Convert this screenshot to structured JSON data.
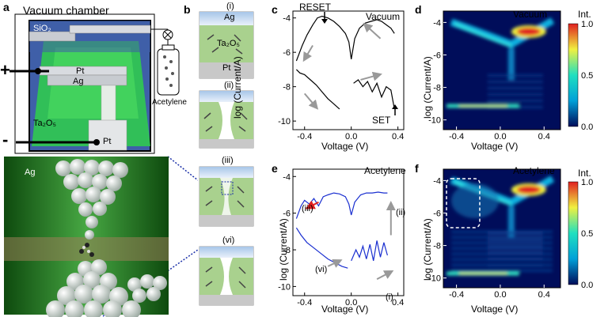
{
  "panel_labels": {
    "a": "a",
    "b": "b",
    "c": "c",
    "d": "d",
    "e": "e",
    "f": "f"
  },
  "panel_a": {
    "title": "Vacuum chamber",
    "sio2": "SiO₂",
    "pt_top": "Pt",
    "ag": "Ag",
    "ta2o5": "Ta₂O₅",
    "pt_bottom": "Pt",
    "plus": "+",
    "minus": "-",
    "acetylene": "Acetylene",
    "nano_ag": "Ag"
  },
  "panel_b": {
    "stages": [
      "(i)",
      "(ii)",
      "(iii)",
      "(vi)"
    ],
    "ag": "Ag",
    "ta2o5": "Ta₂O₅",
    "pt": "Pt"
  },
  "chart_data": [
    {
      "panel": "c",
      "type": "line",
      "title": "Vacuum",
      "xlabel": "Voltage (V)",
      "ylabel": "log (Current/A)",
      "xlim": [
        -0.5,
        0.45
      ],
      "ylim": [
        -10.5,
        -3.6
      ],
      "xticks": [
        "-0.4",
        "0.0",
        "0.4"
      ],
      "yticks": [
        "-4",
        "-6",
        "-8",
        "-10"
      ],
      "annotations": [
        "RESET",
        "SET"
      ],
      "series": [
        {
          "x": [
            -0.47,
            -0.42,
            -0.38,
            -0.33,
            -0.29,
            -0.25,
            -0.2,
            -0.15,
            -0.1,
            -0.05,
            -0.02,
            0.0,
            0.03,
            0.07,
            0.12,
            0.17,
            0.22,
            0.26,
            0.3,
            0.34,
            0.36,
            0.37
          ],
          "y": [
            -6.5,
            -5.6,
            -5.0,
            -4.4,
            -4.0,
            -3.9,
            -4.0,
            -4.2,
            -4.5,
            -4.9,
            -5.4,
            -6.4,
            -5.2,
            -4.6,
            -4.3,
            -4.2,
            -4.1,
            -4.2,
            -4.4,
            -4.6,
            -4.8,
            -4.9
          ]
        },
        {
          "x": [
            0.37,
            0.34,
            0.3,
            0.26,
            0.22,
            0.18,
            0.14,
            0.1,
            0.06,
            0.02
          ],
          "y": [
            -9.3,
            -8.2,
            -8.0,
            -8.6,
            -7.8,
            -8.3,
            -7.7,
            -8.0,
            -7.6,
            -7.8
          ]
        },
        {
          "x": [
            -0.47,
            -0.44,
            -0.4,
            -0.35,
            -0.3,
            -0.25,
            -0.2,
            -0.15,
            -0.1
          ],
          "y": [
            -7.0,
            -7.2,
            -7.3,
            -7.6,
            -7.9,
            -8.3,
            -8.7,
            -9.0,
            -9.3
          ]
        }
      ]
    },
    {
      "panel": "d",
      "type": "heatmap",
      "title": "Vacuum",
      "xlabel": "Voltage (V)",
      "ylabel": "log (Current/A)",
      "xticks": [
        "-0.4",
        "0.0",
        "0.4"
      ],
      "yticks": [
        "-4",
        "-6",
        "-8",
        "-10"
      ],
      "colorbar_label": "Int.",
      "colorbar_ticks": [
        "1.0",
        "0.5",
        "0.0"
      ],
      "colors": [
        "#000d5a",
        "#00a0d8",
        "#20e0c0",
        "#f0f040",
        "#e02020"
      ]
    },
    {
      "panel": "e",
      "type": "line",
      "title": "Acetylene",
      "xlabel": "Voltage (V)",
      "ylabel": "log (Current/A)",
      "xlim": [
        -0.5,
        0.45
      ],
      "ylim": [
        -10.5,
        -3.6
      ],
      "xticks": [
        "-0.4",
        "0.0",
        "0.4"
      ],
      "yticks": [
        "-4",
        "-6",
        "-8",
        "-10"
      ],
      "annotations": [
        "(i)",
        "(ii)",
        "(iii)",
        "(vi)"
      ],
      "color": "#1a2fd0",
      "series": [
        {
          "x": [
            -0.47,
            -0.43,
            -0.4,
            -0.36,
            -0.32,
            -0.28,
            -0.24,
            -0.2,
            -0.15,
            -0.1,
            -0.05,
            -0.02,
            0.0,
            0.03,
            0.08,
            0.13,
            0.18,
            0.23,
            0.28,
            0.31
          ],
          "y": [
            -6.3,
            -5.6,
            -5.3,
            -5.5,
            -5.2,
            -5.6,
            -5.1,
            -5.0,
            -4.9,
            -4.95,
            -5.1,
            -5.5,
            -6.1,
            -5.4,
            -5.0,
            -4.9,
            -4.9,
            -4.85,
            -4.9,
            -4.9
          ]
        },
        {
          "x": [
            0.31,
            0.28,
            0.25,
            0.22,
            0.19,
            0.16,
            0.13,
            0.1,
            0.07,
            0.04,
            0.0
          ],
          "y": [
            -8.3,
            -7.6,
            -8.4,
            -7.5,
            -8.6,
            -7.7,
            -8.5,
            -7.8,
            -8.4,
            -8.0,
            -8.6
          ]
        },
        {
          "x": [
            -0.47,
            -0.43,
            -0.38,
            -0.32,
            -0.26,
            -0.2,
            -0.14,
            -0.08,
            -0.03
          ],
          "y": [
            -6.8,
            -7.2,
            -7.6,
            -7.9,
            -8.2,
            -8.5,
            -8.7,
            -8.9,
            -9.0
          ]
        }
      ]
    },
    {
      "panel": "f",
      "type": "heatmap",
      "title": "Acetylene",
      "xlabel": "Voltage (V)",
      "ylabel": "log (Current/A)",
      "xticks": [
        "-0.4",
        "0.0",
        "0.4"
      ],
      "yticks": [
        "-4",
        "-6",
        "-8",
        "-10"
      ],
      "colorbar_label": "Int.",
      "colorbar_ticks": [
        "1.0",
        "0.5",
        "0.0"
      ],
      "colors": [
        "#000d5a",
        "#00a0d8",
        "#20e0c0",
        "#f0f040",
        "#e02020"
      ]
    }
  ]
}
